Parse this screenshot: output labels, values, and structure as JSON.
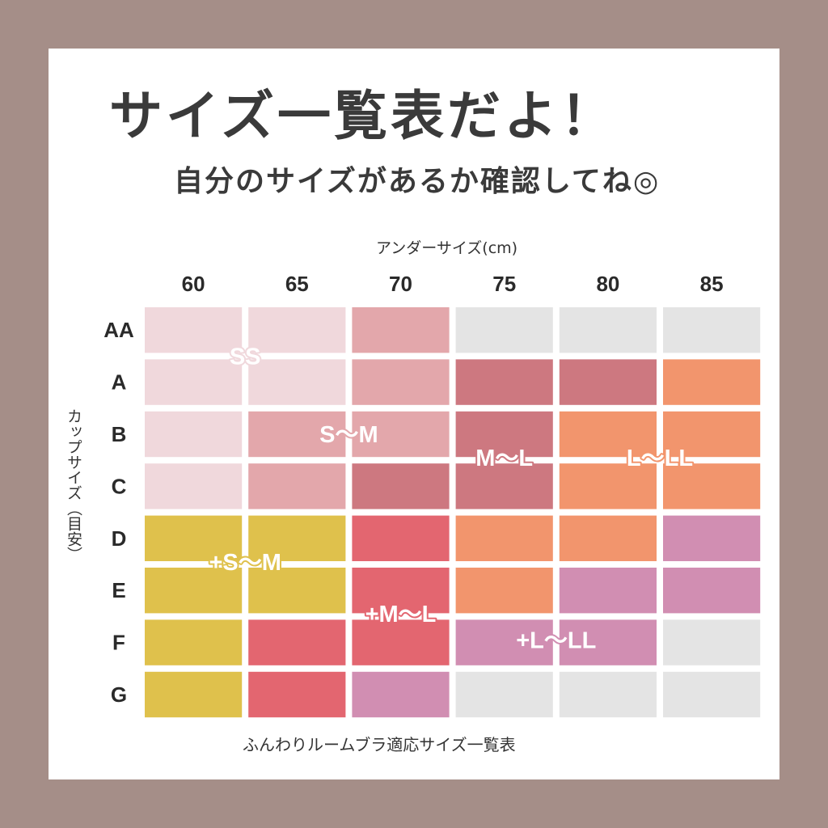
{
  "heading": "サイズ一覧表だよ！",
  "subheading": "自分のサイズがあるか確認してね◎",
  "caption": "ふんわりルームブラ適応サイズ一覧表",
  "colors": {
    "background": "#a58e88",
    "SS": "#f0d8dc",
    "S~M": "#e3a7ab",
    "M~L": "#cd7880",
    "L~LL": "#f2956d",
    "+S~M": "#dfc14c",
    "+M~L": "#e36670",
    "+L~LL": "#d18eb2",
    "none": "#e4e4e4"
  },
  "chart_data": {
    "type": "heatmap",
    "xlabel": "アンダーサイズ(cm)",
    "ylabel": "カップサイズ（目安）",
    "x": [
      "60",
      "65",
      "70",
      "75",
      "80",
      "85"
    ],
    "y": [
      "AA",
      "A",
      "B",
      "C",
      "D",
      "E",
      "F",
      "G"
    ],
    "cells": [
      [
        "SS",
        "SS",
        "S~M",
        "none",
        "none",
        "none"
      ],
      [
        "SS",
        "SS",
        "S~M",
        "M~L",
        "M~L",
        "L~LL"
      ],
      [
        "SS",
        "S~M",
        "S~M",
        "M~L",
        "L~LL",
        "L~LL"
      ],
      [
        "SS",
        "S~M",
        "M~L",
        "M~L",
        "L~LL",
        "L~LL"
      ],
      [
        "+S~M",
        "+S~M",
        "+M~L",
        "L~LL",
        "L~LL",
        "+L~LL"
      ],
      [
        "+S~M",
        "+S~M",
        "+M~L",
        "L~LL",
        "+L~LL",
        "+L~LL"
      ],
      [
        "+S~M",
        "+M~L",
        "+M~L",
        "+L~LL",
        "+L~LL",
        "none"
      ],
      [
        "+S~M",
        "+M~L",
        "+L~LL",
        "none",
        "none",
        "none"
      ]
    ],
    "zone_labels": [
      {
        "text": "SS",
        "color": "SS",
        "col": 1.0,
        "row": 1.0
      },
      {
        "text": "S～M",
        "color": "S~M",
        "col": 2.0,
        "row": 2.5
      },
      {
        "text": "M～L",
        "color": "M~L",
        "col": 3.5,
        "row": 2.95
      },
      {
        "text": "L～LL",
        "color": "L~LL",
        "col": 5.0,
        "row": 2.95
      },
      {
        "text": "+S～M",
        "color": "+S~M",
        "col": 1.0,
        "row": 4.95
      },
      {
        "text": "+M～L",
        "color": "+M~L",
        "col": 2.5,
        "row": 5.95
      },
      {
        "text": "+L～LL",
        "color": "+L~LL",
        "col": 4.0,
        "row": 6.45
      }
    ]
  }
}
